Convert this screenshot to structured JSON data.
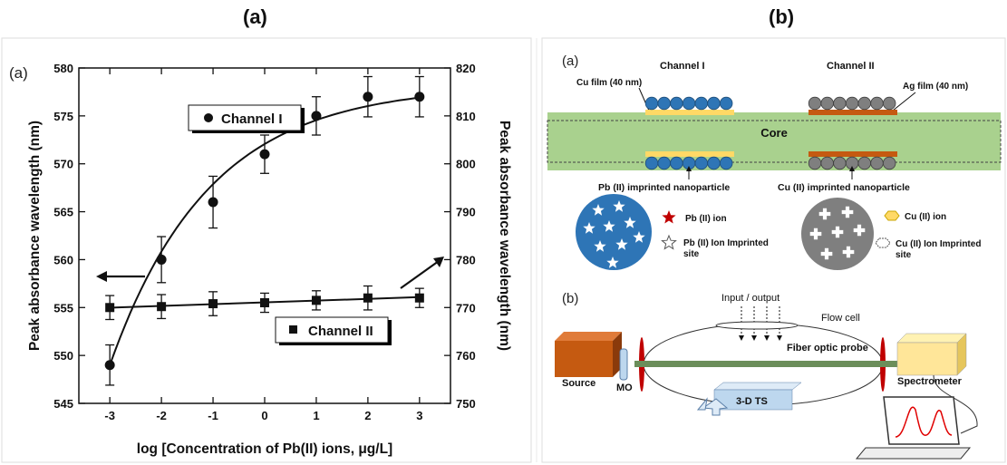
{
  "headers": {
    "left": "(a)",
    "right": "(b)"
  },
  "chart_data": {
    "type": "scatter",
    "panel_label": "(a)",
    "xlabel": "log [Concentration of Pb(II) ions, μg/L]",
    "ylabel": "Peak absorbance wavelength (nm)",
    "y2label": "Peak absorbance wavelength (nm)",
    "x": [
      -3,
      -2,
      -1,
      0,
      1,
      2,
      3
    ],
    "xlim": [
      -3.6,
      3.6
    ],
    "ylim": [
      545,
      580
    ],
    "y2lim": [
      750,
      820
    ],
    "xticks": [
      "-3",
      "-2",
      "-1",
      "0",
      "1",
      "2",
      "3"
    ],
    "yticks": [
      "545",
      "550",
      "555",
      "560",
      "565",
      "570",
      "575",
      "580"
    ],
    "y2ticks": [
      "750",
      "760",
      "770",
      "780",
      "790",
      "800",
      "810",
      "820"
    ],
    "series": [
      {
        "name": "Channel I",
        "marker": "circle",
        "axis": "left",
        "values": [
          549,
          560,
          566,
          571,
          575,
          577,
          577
        ],
        "errors": [
          2.1,
          2.4,
          2.7,
          2.0,
          2.0,
          2.1,
          2.1
        ]
      },
      {
        "name": "Channel II",
        "marker": "square",
        "axis": "right",
        "values": [
          770,
          770.2,
          770.8,
          771,
          771.5,
          772,
          772
        ],
        "errors": [
          2.5,
          2.5,
          2.5,
          2.0,
          2.0,
          2.5,
          2.0
        ]
      }
    ],
    "grid": false
  },
  "diagram": {
    "label_a": "(a)",
    "channel1": "Channel I",
    "channel2": "Channel II",
    "cu_film": "Cu film (40 nm)",
    "ag_film": "Ag film (40 nm)",
    "core": "Core",
    "pb_np": "Pb (II) imprinted nanoparticle",
    "cu_np": "Cu (II) imprinted nanoparticle",
    "pb_ion": "Pb (II) ion",
    "pb_site1": "Pb (II) Ion Imprinted",
    "pb_site2": "site",
    "cu_ion": "Cu (II) ion",
    "cu_site1": "Cu (II) Ion Imprinted",
    "cu_site2": "site",
    "label_b": "(b)",
    "io": "Input / output",
    "flow_cell": "Flow cell",
    "probe": "Fiber optic probe",
    "source": "Source",
    "mo": "MO",
    "spectrometer": "Spectrometer",
    "ts": "3-D TS"
  },
  "colors": {
    "film_green": "#a9d18e",
    "np_blue": "#2e75b6",
    "np_grey": "#7f7f7f",
    "gold": "#ffd966",
    "copper": "#c55a11",
    "ion_red": "#c00000",
    "source": "#c55a11",
    "spectro": "#ffe699",
    "ts": "#bdd7ee",
    "spectrum": "#e00000"
  }
}
